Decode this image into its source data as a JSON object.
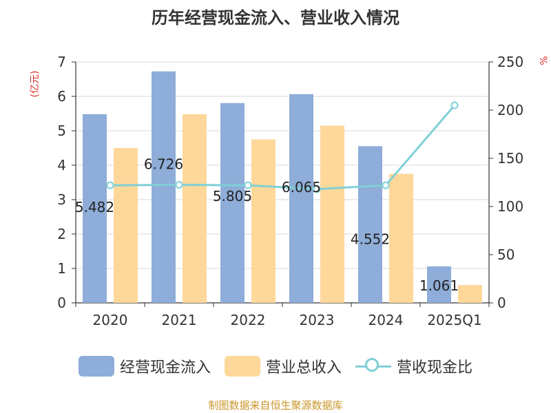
{
  "title": "历年经营现金流入、营业收入情况",
  "left_unit": "(亿元)",
  "right_unit": "%",
  "source": "制图数据来自恒生聚源数据库",
  "colors": {
    "cash_inflow": "#8eadd8",
    "revenue": "#fdd89a",
    "ratio": "#7fd0d6",
    "axis": "#333333",
    "grid": "#d9d9d9",
    "unit_text": "#d9312a",
    "source_text": "#c9962a"
  },
  "chart_data": {
    "type": "bar",
    "categories": [
      "2020",
      "2021",
      "2022",
      "2023",
      "2024",
      "2025Q1"
    ],
    "series": [
      {
        "name": "经营现金流入",
        "type": "bar",
        "axis": "left",
        "values": [
          5.482,
          6.726,
          5.805,
          6.065,
          4.552,
          1.061
        ],
        "labels": [
          "5.482",
          "6.726",
          "5.805",
          "6.065",
          "4.552",
          "1.061"
        ]
      },
      {
        "name": "营业总收入",
        "type": "bar",
        "axis": "left",
        "values": [
          4.5,
          5.48,
          4.75,
          5.15,
          3.75,
          0.52
        ]
      },
      {
        "name": "营收现金比",
        "type": "line",
        "axis": "right",
        "values": [
          122,
          122.5,
          122,
          118,
          122,
          205
        ]
      }
    ],
    "y_left": {
      "min": 0,
      "max": 7,
      "ticks": [
        "0",
        "1",
        "2",
        "3",
        "4",
        "5",
        "6",
        "7"
      ]
    },
    "y_right": {
      "min": 0,
      "max": 250,
      "ticks": [
        "0",
        "50",
        "100",
        "150",
        "200",
        "250"
      ]
    },
    "grid": true,
    "legend": "bottom-center"
  }
}
